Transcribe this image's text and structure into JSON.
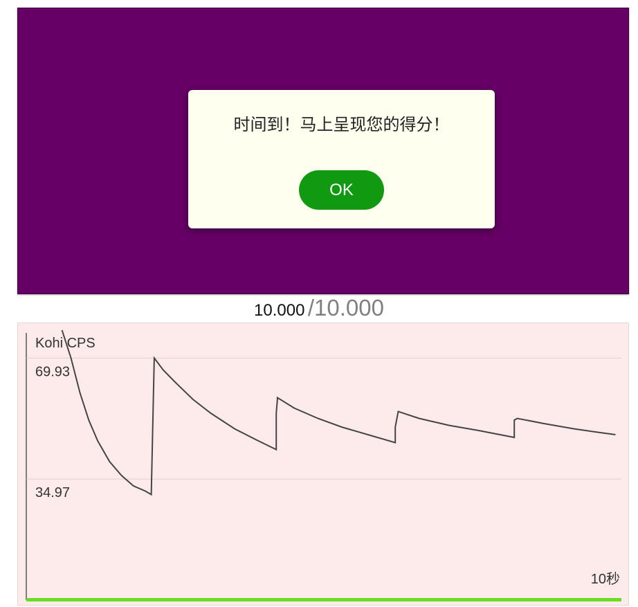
{
  "dialog": {
    "message": "时间到！马上呈现您的得分！",
    "ok_label": "OK"
  },
  "timer": {
    "elapsed": "10.000",
    "total": "/10.000"
  },
  "chart": {
    "title": "Kohi CPS",
    "x_end_label": "10秒"
  },
  "colors": {
    "click_area": "#660066",
    "dialog_bg": "#fffff0",
    "ok_button": "#119911",
    "chart_bg": "#fdeaea",
    "progress_bar": "#66dd22",
    "line": "#444444"
  },
  "chart_data": {
    "type": "line",
    "title": "Kohi CPS",
    "xlabel": "10秒",
    "ylabel": "",
    "y_ticks": [
      69.93,
      34.97
    ],
    "ylim": [
      0,
      80
    ],
    "xlim": [
      0,
      10
    ],
    "grid": true,
    "progress": 1.0,
    "series": [
      {
        "points": [
          [
            0.6,
            80
          ],
          [
            0.75,
            70
          ],
          [
            0.9,
            60
          ],
          [
            1.05,
            52
          ],
          [
            1.2,
            46
          ],
          [
            1.4,
            40
          ],
          [
            1.6,
            36
          ],
          [
            1.8,
            33
          ],
          [
            2.0,
            31.5
          ],
          [
            2.1,
            30.5
          ],
          [
            2.12,
            46
          ],
          [
            2.15,
            69.93
          ],
          [
            2.3,
            66.5
          ],
          [
            2.5,
            63
          ],
          [
            2.8,
            58
          ],
          [
            3.1,
            54
          ],
          [
            3.5,
            49.5
          ],
          [
            3.9,
            46
          ],
          [
            4.2,
            43.5
          ],
          [
            4.2,
            54
          ],
          [
            4.22,
            58
          ],
          [
            4.22,
            58.5
          ],
          [
            4.5,
            55.5
          ],
          [
            4.9,
            52.5
          ],
          [
            5.3,
            50
          ],
          [
            5.8,
            47.5
          ],
          [
            6.2,
            45.5
          ],
          [
            6.2,
            50
          ],
          [
            6.25,
            54.5
          ],
          [
            6.6,
            52.5
          ],
          [
            7.1,
            50.5
          ],
          [
            7.6,
            49
          ],
          [
            8.2,
            47
          ],
          [
            8.2,
            52
          ],
          [
            8.25,
            52.5
          ],
          [
            8.7,
            51
          ],
          [
            9.2,
            49.5
          ],
          [
            9.6,
            48.5
          ],
          [
            9.9,
            47.8
          ]
        ]
      }
    ]
  }
}
